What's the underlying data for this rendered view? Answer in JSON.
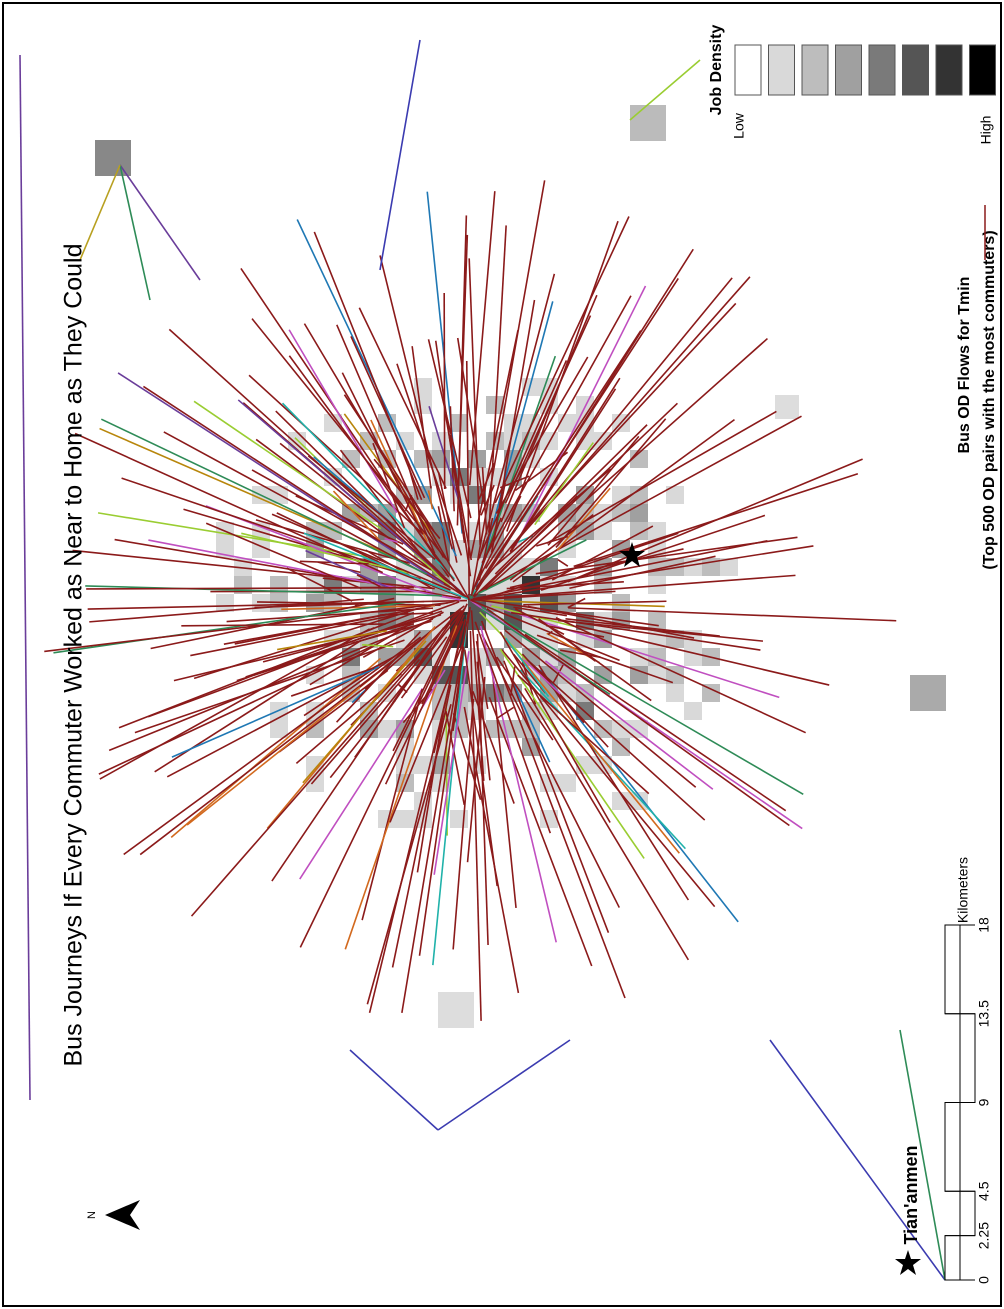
{
  "title": "Bus Journeys If Every Commuter Worked as Near to Home as They Could",
  "legend": {
    "job_density": {
      "title": "Job Density",
      "low": "Low",
      "high": "High",
      "colors": [
        "#ffffff",
        "#d9d9d9",
        "#bdbdbd",
        "#a0a0a0",
        "#7a7a7a",
        "#555555",
        "#333333",
        "#000000"
      ]
    },
    "flows": {
      "title": "Bus OD Flows for Tmin",
      "subtitle": "(Top 500 OD pairs with the most commuters)",
      "color": "#8b1a1a"
    }
  },
  "landmark": {
    "label": "Tian'anmen"
  },
  "scale_bar": {
    "unit": "Kilometers",
    "ticks": [
      0,
      2.25,
      4.5,
      9,
      13.5,
      18
    ]
  },
  "north": {
    "label": "N"
  }
}
